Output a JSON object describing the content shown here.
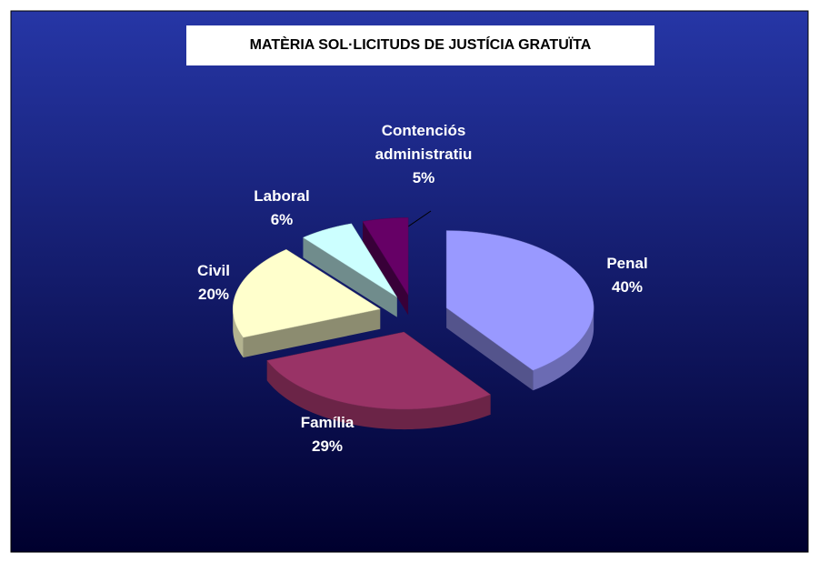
{
  "chart_data": {
    "type": "pie",
    "title": "MATÈRIA SOL·LICITUDS DE JUSTÍCIA GRATUÏTA",
    "categories": [
      "Penal",
      "Família",
      "Civil",
      "Laboral",
      "Contenciós administratiu"
    ],
    "values": [
      40,
      29,
      20,
      6,
      5
    ],
    "value_labels": [
      "40%",
      "29%",
      "20%",
      "6%",
      "5%"
    ],
    "colors": [
      "#9999ff",
      "#993366",
      "#ffffcc",
      "#ccffff",
      "#660066"
    ]
  }
}
